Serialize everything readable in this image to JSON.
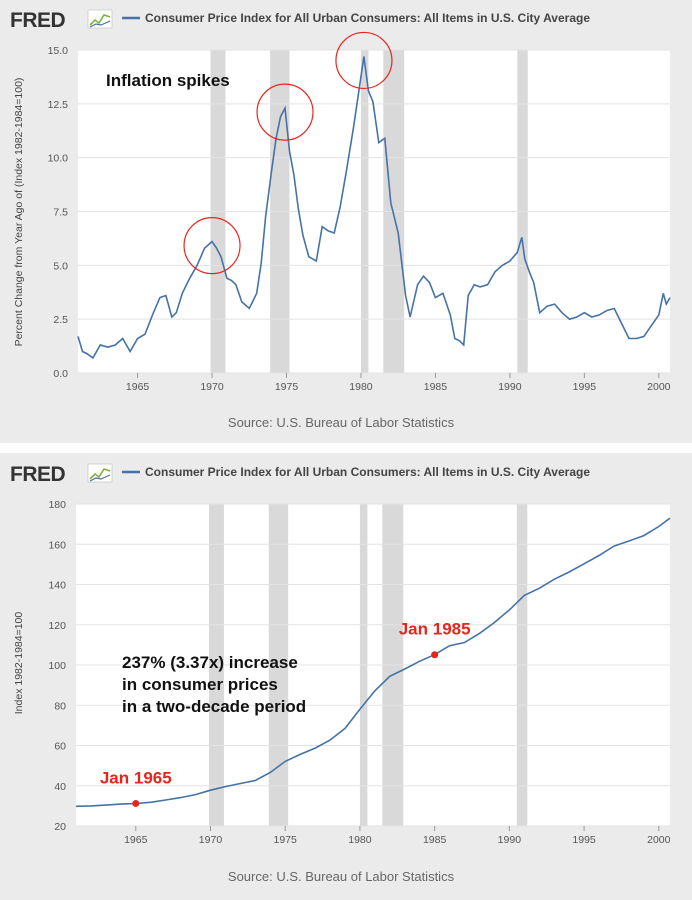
{
  "brand": {
    "logo_text": "FRED"
  },
  "colors": {
    "line": "#4572a7",
    "recession": "#d9d9d9",
    "highlight": "#e8251d",
    "plot_bg": "#ffffff",
    "panel_bg": "#ebebeb"
  },
  "chart_data": [
    {
      "type": "line",
      "title": "Consumer Price Index for All Urban Consumers: All Items in U.S. City Average",
      "ylabel": "Percent Change from Year Ago of (Index 1982-1984=100)",
      "xlabel": "",
      "source": "Source: U.S. Bureau of Labor Statistics",
      "xlim": [
        1961.0,
        2000.75
      ],
      "ylim": [
        0,
        15
      ],
      "yticks": [
        "0.0",
        "2.5",
        "5.0",
        "7.5",
        "10.0",
        "12.5",
        "15.0"
      ],
      "xticks": [
        "1965",
        "1970",
        "1975",
        "1980",
        "1985",
        "1990",
        "1995",
        "2000"
      ],
      "grid": true,
      "legend_position": "top",
      "annotation": "Inflation spikes",
      "recessions": [
        [
          1969.9,
          1970.9
        ],
        [
          1973.9,
          1975.2
        ],
        [
          1980.0,
          1980.5
        ],
        [
          1981.5,
          1982.9
        ],
        [
          1990.5,
          1991.2
        ]
      ],
      "highlight_circles_at": [
        1970.0,
        1974.9,
        1980.2
      ],
      "series": [
        {
          "name": "Consumer Price Index for All Urban Consumers: All Items in U.S. City Average",
          "x": [
            1961.0,
            1961.3,
            1961.6,
            1962.0,
            1962.5,
            1963.0,
            1963.5,
            1964.0,
            1964.5,
            1965.0,
            1965.5,
            1966.0,
            1966.5,
            1966.9,
            1967.3,
            1967.6,
            1968.0,
            1968.5,
            1969.0,
            1969.5,
            1970.0,
            1970.3,
            1970.6,
            1971.0,
            1971.3,
            1971.6,
            1972.0,
            1972.5,
            1973.0,
            1973.3,
            1973.6,
            1974.0,
            1974.3,
            1974.6,
            1974.9,
            1975.2,
            1975.5,
            1975.8,
            1976.1,
            1976.5,
            1977.0,
            1977.4,
            1977.8,
            1978.2,
            1978.6,
            1979.0,
            1979.5,
            1979.9,
            1980.2,
            1980.5,
            1980.8,
            1981.2,
            1981.6,
            1982.0,
            1982.5,
            1983.0,
            1983.3,
            1983.8,
            1984.2,
            1984.6,
            1985.0,
            1985.5,
            1986.0,
            1986.3,
            1986.6,
            1986.9,
            1987.2,
            1987.6,
            1988.0,
            1988.5,
            1989.0,
            1989.5,
            1990.0,
            1990.5,
            1990.8,
            1991.0,
            1991.3,
            1991.6,
            1992.0,
            1992.5,
            1993.0,
            1993.5,
            1994.0,
            1994.5,
            1995.0,
            1995.5,
            1996.0,
            1996.5,
            1997.0,
            1997.5,
            1998.0,
            1998.5,
            1999.0,
            1999.5,
            2000.0,
            2000.3,
            2000.5,
            2000.75
          ],
          "values": [
            1.7,
            1.0,
            0.9,
            0.7,
            1.3,
            1.2,
            1.3,
            1.6,
            1.0,
            1.6,
            1.8,
            2.7,
            3.5,
            3.6,
            2.6,
            2.8,
            3.7,
            4.4,
            5.0,
            5.8,
            6.1,
            5.8,
            5.4,
            4.4,
            4.3,
            4.1,
            3.3,
            3.0,
            3.7,
            5.1,
            7.3,
            9.4,
            10.9,
            11.9,
            12.3,
            10.3,
            9.2,
            7.6,
            6.4,
            5.4,
            5.2,
            6.8,
            6.6,
            6.5,
            7.7,
            9.3,
            11.4,
            13.3,
            14.7,
            13.1,
            12.6,
            10.7,
            10.9,
            7.9,
            6.5,
            3.6,
            2.6,
            4.1,
            4.5,
            4.2,
            3.5,
            3.7,
            2.7,
            1.6,
            1.5,
            1.3,
            3.6,
            4.1,
            4.0,
            4.1,
            4.7,
            5.0,
            5.2,
            5.6,
            6.3,
            5.3,
            4.7,
            4.2,
            2.8,
            3.1,
            3.2,
            2.8,
            2.5,
            2.6,
            2.8,
            2.6,
            2.7,
            2.9,
            3.0,
            2.3,
            1.6,
            1.6,
            1.7,
            2.2,
            2.7,
            3.7,
            3.2,
            3.5
          ]
        }
      ]
    },
    {
      "type": "line",
      "title": "Consumer Price Index for All Urban Consumers: All Items in U.S. City Average",
      "ylabel": "Index 1982-1984=100",
      "xlabel": "",
      "source": "Source: U.S. Bureau of Labor Statistics",
      "xlim": [
        1961.0,
        2000.75
      ],
      "ylim": [
        20,
        180
      ],
      "yticks": [
        "20",
        "40",
        "60",
        "80",
        "100",
        "120",
        "140",
        "160",
        "180"
      ],
      "xticks": [
        "1965",
        "1970",
        "1975",
        "1980",
        "1985",
        "1990",
        "1995",
        "2000"
      ],
      "grid": true,
      "legend_position": "top",
      "annotation": [
        "237% (3.37x) increase",
        "in consumer prices",
        "in a two-decade period"
      ],
      "recessions": [
        [
          1969.9,
          1970.9
        ],
        [
          1973.9,
          1975.2
        ],
        [
          1980.0,
          1980.5
        ],
        [
          1981.5,
          1982.9
        ],
        [
          1990.5,
          1991.2
        ]
      ],
      "points": [
        {
          "label": "Jan 1965",
          "x": 1965.0,
          "y": 31.2
        },
        {
          "label": "Jan 1985",
          "x": 1985.0,
          "y": 105.1
        }
      ],
      "series": [
        {
          "name": "Consumer Price Index for All Urban Consumers: All Items in U.S. City Average",
          "x": [
            1961,
            1962,
            1963,
            1964,
            1965,
            1966,
            1967,
            1968,
            1969,
            1970,
            1971,
            1972,
            1973,
            1974,
            1975,
            1976,
            1977,
            1978,
            1979,
            1980,
            1981,
            1982,
            1983,
            1984,
            1985,
            1986,
            1987,
            1988,
            1989,
            1990,
            1991,
            1992,
            1993,
            1994,
            1995,
            1996,
            1997,
            1998,
            1999,
            2000,
            2000.75
          ],
          "values": [
            29.8,
            30.0,
            30.4,
            30.9,
            31.2,
            31.8,
            32.9,
            34.1,
            35.6,
            37.8,
            39.6,
            41.1,
            42.6,
            46.6,
            52.1,
            55.6,
            58.7,
            62.7,
            68.5,
            78.0,
            87.2,
            94.4,
            98.0,
            101.9,
            105.1,
            109.6,
            111.2,
            115.7,
            121.1,
            127.4,
            134.6,
            138.1,
            142.6,
            146.2,
            150.3,
            154.4,
            159.1,
            161.6,
            164.3,
            168.8,
            173.0
          ]
        }
      ]
    }
  ]
}
